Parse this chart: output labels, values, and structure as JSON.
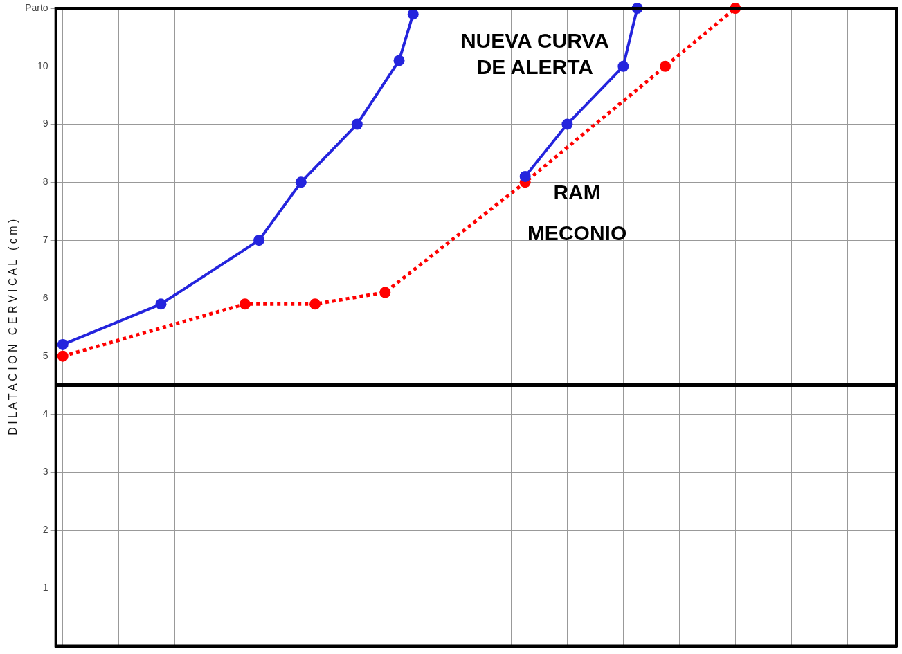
{
  "chart_data": {
    "type": "line",
    "ylabel": "D I L A T A C I O N   C E R V I C A L   ( c m )",
    "categories": [
      null,
      null,
      null,
      null,
      null,
      null,
      null,
      null,
      null,
      null,
      null,
      null,
      null,
      null,
      null,
      null,
      null,
      null,
      null,
      null,
      null,
      null,
      null,
      null,
      null,
      null,
      null,
      null,
      null,
      null,
      null,
      null,
      null,
      null,
      null,
      null,
      null,
      null,
      null,
      null,
      null,
      null,
      null,
      null,
      null,
      null,
      null,
      null,
      null,
      null,
      null,
      null,
      null,
      null,
      null,
      null,
      null,
      null,
      null,
      null
    ],
    "ylim": [
      0,
      11
    ],
    "yticks": [
      1,
      2,
      3,
      4,
      5,
      6,
      7,
      8,
      9,
      10,
      {
        "value": 11,
        "label": "Parto"
      }
    ],
    "tick_labels": "y",
    "grid": true,
    "marker": "circle",
    "ref_lines": [
      {
        "axis": "y",
        "value": 4.5,
        "color": "#000000"
      }
    ],
    "series": [
      {
        "color": "#2424dd",
        "line_style": "solid",
        "values": [
          5.2,
          null,
          null,
          null,
          null,
          null,
          null,
          5.9,
          null,
          null,
          null,
          null,
          null,
          null,
          7.0,
          null,
          null,
          8.0,
          null,
          null,
          null,
          9.0,
          null,
          null,
          10.1,
          10.9,
          null,
          null,
          null,
          null,
          null,
          null,
          null,
          null,
          null,
          null,
          null,
          null,
          null,
          null,
          null,
          null,
          null,
          null,
          null,
          null,
          null,
          null,
          null,
          null,
          null,
          null,
          null,
          null,
          null,
          null,
          null,
          null,
          null,
          null
        ]
      },
      {
        "color": "#2424dd",
        "line_style": "solid",
        "values": [
          null,
          null,
          null,
          null,
          null,
          null,
          null,
          null,
          null,
          null,
          null,
          null,
          null,
          null,
          null,
          null,
          null,
          null,
          null,
          null,
          null,
          null,
          null,
          null,
          null,
          null,
          null,
          null,
          null,
          null,
          null,
          null,
          null,
          8.1,
          null,
          null,
          9.0,
          null,
          null,
          null,
          10.0,
          11.0,
          null,
          null,
          null,
          null,
          null,
          null,
          null,
          null,
          null,
          null,
          null,
          null,
          null,
          null,
          null,
          null,
          null,
          null
        ]
      },
      {
        "color": "#ff0000",
        "line_style": "dotted",
        "values": [
          5.0,
          null,
          null,
          null,
          null,
          null,
          null,
          null,
          null,
          null,
          null,
          null,
          null,
          5.9,
          null,
          null,
          null,
          null,
          5.9,
          null,
          null,
          null,
          null,
          6.1,
          null,
          null,
          null,
          null,
          null,
          null,
          null,
          null,
          null,
          8.0,
          null,
          null,
          null,
          null,
          null,
          null,
          null,
          null,
          null,
          10.0,
          null,
          null,
          null,
          null,
          11.0,
          null,
          null,
          null,
          null,
          null,
          null,
          null,
          null,
          null,
          null,
          null
        ]
      }
    ],
    "annotations": [
      "NUEVA CURVA\nDE ALERTA",
      "RAM",
      "MECONIO"
    ]
  }
}
